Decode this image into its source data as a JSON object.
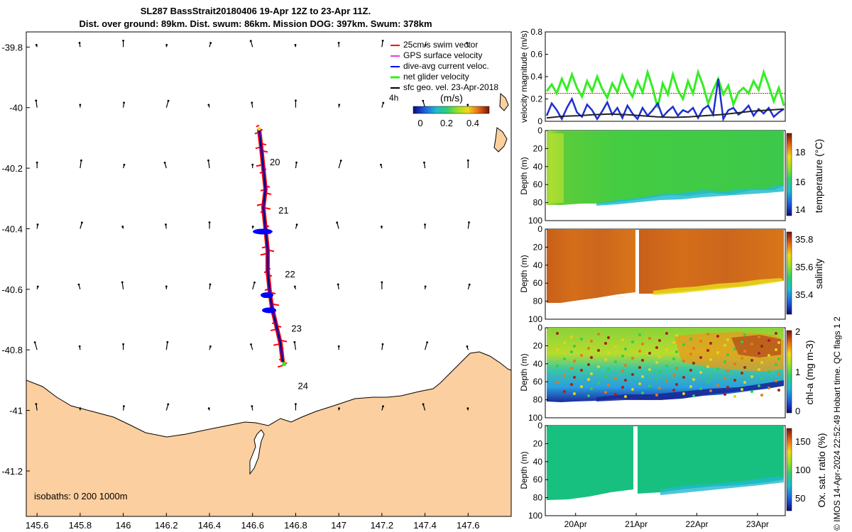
{
  "header": {
    "title_line1": "SL287 BassStrait20180406 19-Apr 12Z to 23-Apr 11Z.",
    "title_line2": "Dist. over ground: 89km. Dist. swum: 86km. Mission DOG: 397km. Swum: 378km"
  },
  "credit": "© IMOS 14-Apr-2024 22:52:49 Hobart time. QC flags 1  2",
  "colors": {
    "land": "#fbcf9f",
    "swim_vector": "#ff0000",
    "gps_velocity": "#e040e0",
    "dive_current": "#0000ff",
    "net_glider": "#33ee22",
    "sfc_geo": "#000000"
  },
  "chart_data": [
    {
      "type": "map",
      "xlim": [
        145.55,
        147.8
      ],
      "ylim": [
        -41.35,
        -39.75
      ],
      "x_ticks": [
        "145.6",
        "145.8",
        "146",
        "146.2",
        "146.4",
        "146.6",
        "146.8",
        "147",
        "147.2",
        "147.4",
        "147.6"
      ],
      "y_ticks": [
        "-39.8",
        "-40",
        "-40.2",
        "-40.4",
        "-40.6",
        "-40.8",
        "-41",
        "-41.2"
      ],
      "legend": [
        {
          "label": "25cm/s swim vector",
          "color": "#ff0000"
        },
        {
          "label": "GPS surface velocity",
          "color": "#e040e0"
        },
        {
          "label": "dive-avg current veloc.",
          "color": "#0000ff"
        },
        {
          "label": "net glider velocity",
          "color": "#33ee22"
        },
        {
          "label": "sfc geo. vel. 23-Apr-2018",
          "color": "#000000"
        }
      ],
      "legend_extra": "4h",
      "colorbar": {
        "label": "(m/s)",
        "ticks": [
          "0",
          "0.2",
          "0.4"
        ],
        "range": [
          0,
          0.5
        ]
      },
      "day_labels": [
        {
          "label": "20",
          "lon": 146.68,
          "lat": -40.19
        },
        {
          "label": "21",
          "lon": 146.72,
          "lat": -40.35
        },
        {
          "label": "22",
          "lon": 146.75,
          "lat": -40.56
        },
        {
          "label": "23",
          "lon": 146.78,
          "lat": -40.74
        },
        {
          "label": "24",
          "lon": 146.81,
          "lat": -40.93
        }
      ],
      "track": [
        {
          "lon": 146.63,
          "lat": -40.07
        },
        {
          "lon": 146.64,
          "lat": -40.13
        },
        {
          "lon": 146.65,
          "lat": -40.2
        },
        {
          "lon": 146.66,
          "lat": -40.27
        },
        {
          "lon": 146.65,
          "lat": -40.33
        },
        {
          "lon": 146.66,
          "lat": -40.4
        },
        {
          "lon": 146.67,
          "lat": -40.47
        },
        {
          "lon": 146.67,
          "lat": -40.54
        },
        {
          "lon": 146.68,
          "lat": -40.61
        },
        {
          "lon": 146.69,
          "lat": -40.66
        },
        {
          "lon": 146.71,
          "lat": -40.72
        },
        {
          "lon": 146.73,
          "lat": -40.78
        },
        {
          "lon": 146.74,
          "lat": -40.84
        }
      ],
      "geo_vectors": {
        "lons": [
          145.6,
          145.8,
          146.0,
          146.2,
          146.4,
          146.6,
          146.8,
          147.0,
          147.2,
          147.4,
          147.6
        ],
        "lats": [
          -39.8,
          -40.0,
          -40.2,
          -40.4,
          -40.6,
          -40.8,
          -41.0
        ],
        "mostly_northward": true
      },
      "isobaths_label": "isobaths: 0   200  1000m"
    },
    {
      "type": "line",
      "ylabel": "velocity magnitude (m/s)",
      "ylim": [
        0,
        0.8
      ],
      "y_ticks": [
        "0",
        "0.2",
        "0.4",
        "0.6",
        "0.8"
      ],
      "x_range_days": [
        19.5,
        23.458
      ],
      "reference_line": 0.25,
      "series": [
        {
          "color": "#33ee22",
          "values": [
            0.27,
            0.33,
            0.25,
            0.38,
            0.28,
            0.42,
            0.3,
            0.22,
            0.36,
            0.27,
            0.4,
            0.29,
            0.21,
            0.34,
            0.26,
            0.41,
            0.3,
            0.22,
            0.36,
            0.26,
            0.44,
            0.3,
            0.12,
            0.34,
            0.24,
            0.42,
            0.28,
            0.2,
            0.36,
            0.25,
            0.44,
            0.32,
            0.16,
            0.28,
            0.38,
            0.24,
            0.32,
            0.15,
            0.26,
            0.3,
            0.25,
            0.36,
            0.28,
            0.44,
            0.32,
            0.18,
            0.3,
            0.14
          ]
        },
        {
          "color": "#1d2fd0",
          "values": [
            0.05,
            0.16,
            0.1,
            0.02,
            0.12,
            0.2,
            0.08,
            0.04,
            0.15,
            0.1,
            0.02,
            0.09,
            0.17,
            0.06,
            0.12,
            0.03,
            0.14,
            0.07,
            0.02,
            0.12,
            0.05,
            0.1,
            0.16,
            0.04,
            0.09,
            0.13,
            0.05,
            0.1,
            0.08,
            0.12,
            0.03,
            0.11,
            0.14,
            0.06,
            0.38,
            0.02,
            0.1,
            0.12,
            0.06,
            0.09,
            0.14,
            0.05,
            0.11,
            0.07,
            0.12,
            0.04,
            0.08,
            0.11
          ]
        },
        {
          "color": "#222222",
          "values": [
            0.03,
            0.045,
            0.05,
            0.06,
            0.065,
            0.06,
            0.05,
            0.04,
            0.035,
            0.04,
            0.05,
            0.06,
            0.075,
            0.09,
            0.1,
            0.11
          ]
        }
      ]
    },
    {
      "type": "heatmap",
      "ylabel": "Depth (m)",
      "colorbar_label": "temperature (°C)",
      "colorbar_ticks": [
        "14",
        "16",
        "18"
      ],
      "clim": [
        13.5,
        19.5
      ],
      "ylim": [
        0,
        100
      ],
      "y_ticks": [
        "0",
        "20",
        "40",
        "60",
        "80",
        "100"
      ]
    },
    {
      "type": "heatmap",
      "ylabel": "Depth (m)",
      "colorbar_label": "salinity",
      "colorbar_ticks": [
        "35.4",
        "35.6",
        "35.8"
      ],
      "clim": [
        35.3,
        35.85
      ],
      "ylim": [
        0,
        100
      ],
      "y_ticks": [
        "0",
        "20",
        "40",
        "60",
        "80",
        "100"
      ]
    },
    {
      "type": "heatmap",
      "ylabel": "Depth (m)",
      "colorbar_label": "chl-a (mg m-3)",
      "colorbar_ticks": [
        "0",
        "1",
        "2"
      ],
      "clim": [
        0,
        2
      ],
      "ylim": [
        0,
        100
      ],
      "y_ticks": [
        "0",
        "20",
        "40",
        "60",
        "80",
        "100"
      ]
    },
    {
      "type": "heatmap",
      "ylabel": "Depth (m)",
      "colorbar_label": "Ox. sat. ratio (%)",
      "colorbar_ticks": [
        "50",
        "100",
        "150"
      ],
      "clim": [
        25,
        170
      ],
      "ylim": [
        0,
        100
      ],
      "y_ticks": [
        "0",
        "20",
        "40",
        "60",
        "80",
        "100"
      ],
      "x_ticks": [
        "20Apr",
        "21Apr",
        "22Apr",
        "23Apr"
      ]
    }
  ]
}
